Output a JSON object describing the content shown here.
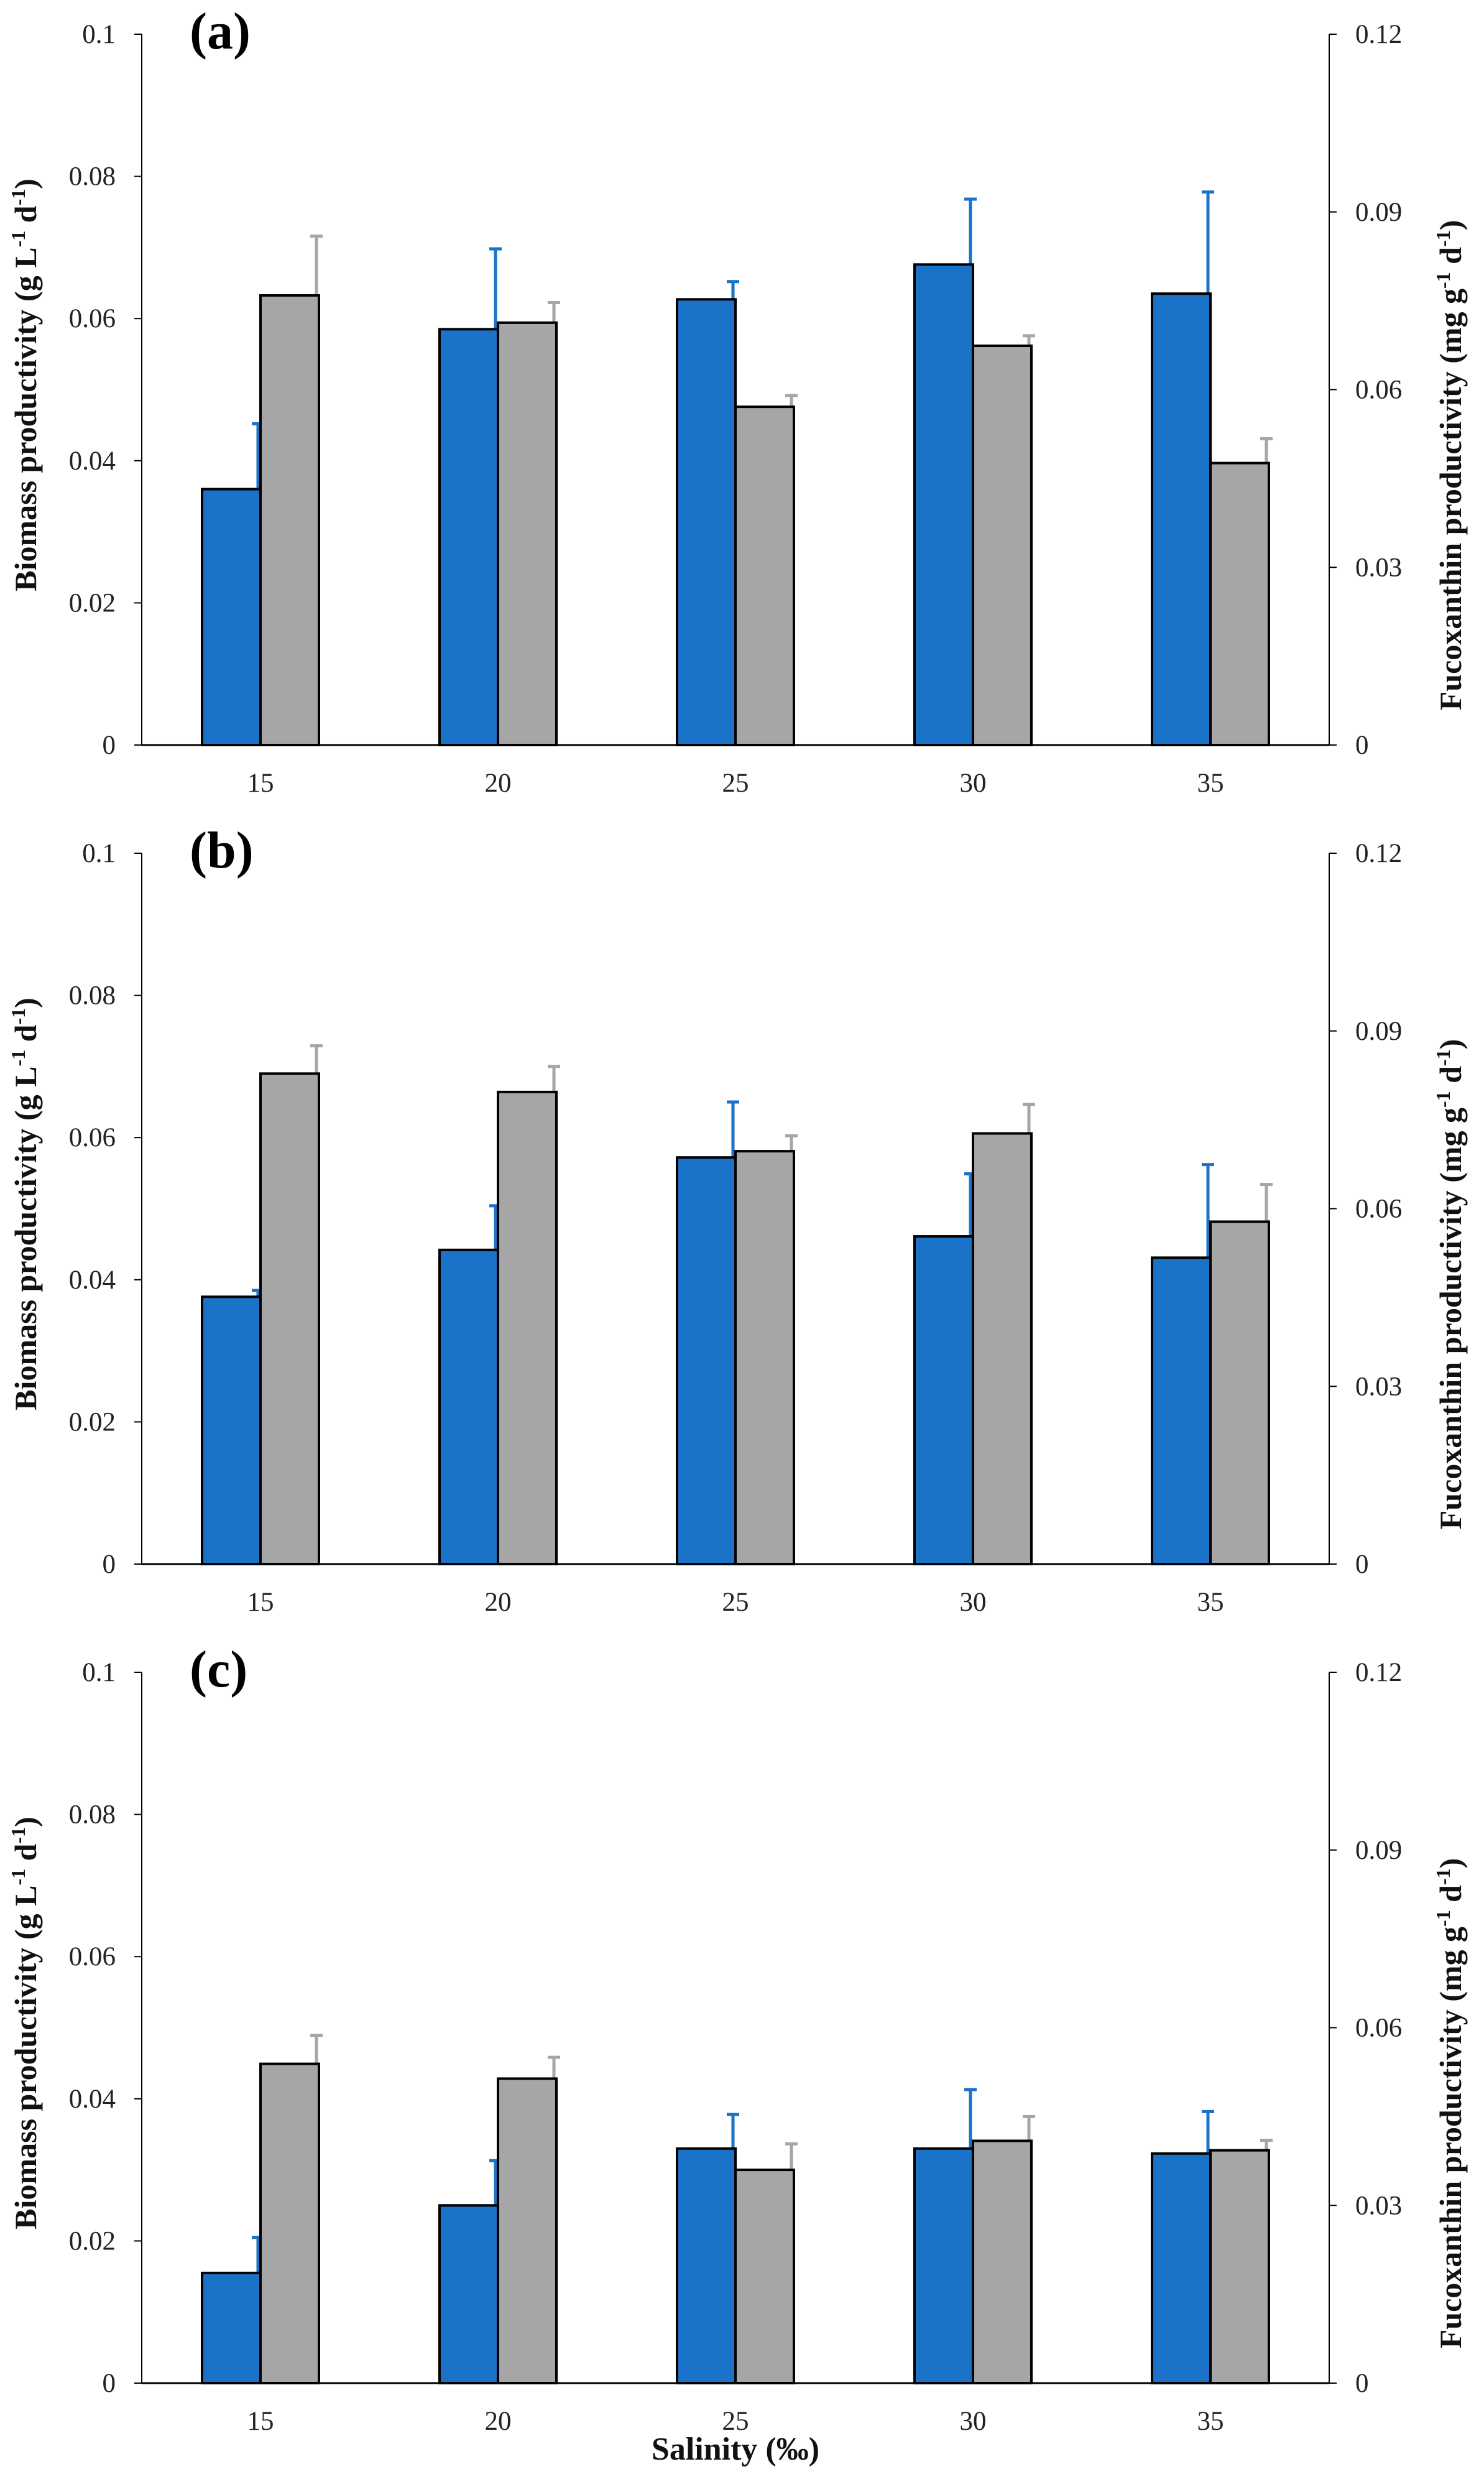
{
  "x_axis_title": "Salinity (‰)",
  "colors": {
    "biomass": "#1a72c9",
    "fucoxanthin": "#a6a6a6",
    "axis": "#000000"
  },
  "chart_data": [
    {
      "type": "bar",
      "panel": "(a)",
      "categories": [
        "15",
        "20",
        "25",
        "30",
        "35"
      ],
      "ylabel_left": {
        "main": "Biomass productivity (g L",
        "sup1": "-1",
        "mid": " d",
        "sup2": "-1",
        "end": ")"
      },
      "ylabel_right": {
        "main": "Fucoxanthin productivity (mg g",
        "sup1": "-1",
        "mid": " d",
        "sup2": "-1",
        "end": ")"
      },
      "ylim_left": [
        0,
        0.1
      ],
      "ylim_right": [
        0,
        0.12
      ],
      "yticks_left": [
        "0",
        "0.02",
        "0.04",
        "0.06",
        "0.08",
        "0.1"
      ],
      "yticks_right": [
        "0",
        "0.03",
        "0.06",
        "0.09",
        "0.12"
      ],
      "series": [
        {
          "name": "Biomass productivity",
          "axis": "left",
          "values": [
            0.036,
            0.0585,
            0.0627,
            0.0676,
            0.0635
          ],
          "errors": [
            0.0092,
            0.0113,
            0.0025,
            0.0092,
            0.0143
          ]
        },
        {
          "name": "Fucoxanthin productivity",
          "axis": "right",
          "values": [
            0.0759,
            0.0713,
            0.0571,
            0.0674,
            0.0476
          ],
          "errors": [
            0.01,
            0.0034,
            0.0019,
            0.0017,
            0.0041
          ]
        }
      ]
    },
    {
      "type": "bar",
      "panel": "(b)",
      "categories": [
        "15",
        "20",
        "25",
        "30",
        "35"
      ],
      "ylabel_left": {
        "main": "Biomass productivity (g L",
        "sup1": "-1",
        "mid": " d",
        "sup2": "-1",
        "end": ")"
      },
      "ylabel_right": {
        "main": "Fucoxanthin productivity (mg g",
        "sup1": "-1",
        "mid": " d",
        "sup2": "-1",
        "end": ")"
      },
      "ylim_left": [
        0,
        0.1
      ],
      "ylim_right": [
        0,
        0.12
      ],
      "yticks_left": [
        "0",
        "0.02",
        "0.04",
        "0.06",
        "0.08",
        "0.1"
      ],
      "yticks_right": [
        "0",
        "0.03",
        "0.06",
        "0.09",
        "0.12"
      ],
      "series": [
        {
          "name": "Biomass productivity",
          "axis": "left",
          "values": [
            0.0376,
            0.0442,
            0.0572,
            0.0461,
            0.0431
          ],
          "errors": [
            0.0009,
            0.0062,
            0.0078,
            0.0088,
            0.0131
          ]
        },
        {
          "name": "Fucoxanthin productivity",
          "axis": "right",
          "values": [
            0.0828,
            0.0797,
            0.0697,
            0.0727,
            0.0578
          ],
          "errors": [
            0.0047,
            0.0043,
            0.0026,
            0.0049,
            0.0063
          ]
        }
      ]
    },
    {
      "type": "bar",
      "panel": "(c)",
      "categories": [
        "15",
        "20",
        "25",
        "30",
        "35"
      ],
      "ylabel_left": {
        "main": "Biomass productivity (g L",
        "sup1": "-1",
        "mid": " d",
        "sup2": "-1",
        "end": ")"
      },
      "ylabel_right": {
        "main": "Fucoxanthin productivity (mg g",
        "sup1": "-1",
        "mid": " d",
        "sup2": "-1",
        "end": ")"
      },
      "ylim_left": [
        0,
        0.1
      ],
      "ylim_right": [
        0,
        0.12
      ],
      "yticks_left": [
        "0",
        "0.02",
        "0.04",
        "0.06",
        "0.08",
        "0.1"
      ],
      "yticks_right": [
        "0",
        "0.03",
        "0.06",
        "0.09",
        "0.12"
      ],
      "series": [
        {
          "name": "Biomass productivity",
          "axis": "left",
          "values": [
            0.0155,
            0.025,
            0.033,
            0.033,
            0.0323
          ],
          "errors": [
            0.005,
            0.0063,
            0.0048,
            0.0083,
            0.0059
          ]
        },
        {
          "name": "Fucoxanthin productivity",
          "axis": "right",
          "values": [
            0.0539,
            0.0514,
            0.036,
            0.0409,
            0.0393
          ],
          "errors": [
            0.0048,
            0.0036,
            0.0044,
            0.0041,
            0.0017
          ]
        }
      ]
    }
  ]
}
